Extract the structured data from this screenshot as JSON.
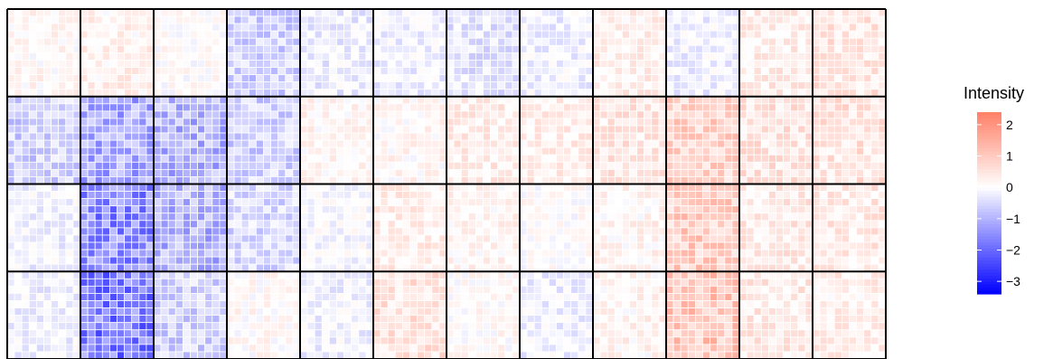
{
  "chart_data": {
    "type": "heatmap",
    "title": "",
    "xlabel": "",
    "ylabel": "",
    "panel_grid": {
      "columns": 12,
      "rows": 4
    },
    "cells_per_panel": {
      "columns": 10,
      "rows": 12
    },
    "grid": true,
    "color_scale": {
      "low_color": "#0000FF",
      "mid_color": "#FFFFFF",
      "high_color": "#FF7F66",
      "midpoint": 0,
      "limits": [
        -3.4,
        2.4
      ]
    },
    "legend": {
      "title": "Intensity",
      "position": "right",
      "ticks": [
        2,
        1,
        0,
        -1,
        -2,
        -3
      ],
      "tick_labels": [
        "2",
        "1",
        "0",
        "−1",
        "−2",
        "−3"
      ]
    },
    "panel_means": [
      [
        0.15,
        0.25,
        0.05,
        -0.6,
        -0.25,
        -0.2,
        -0.35,
        -0.2,
        0.3,
        -0.2,
        0.35,
        0.45
      ],
      [
        -0.6,
        -1.1,
        -1.0,
        -0.6,
        0.2,
        0.15,
        0.35,
        0.3,
        0.45,
        0.8,
        0.5,
        0.5
      ],
      [
        -0.2,
        -1.5,
        -1.0,
        -0.5,
        -0.1,
        0.3,
        0.2,
        0.05,
        0.2,
        0.9,
        0.4,
        0.4
      ],
      [
        -0.2,
        -1.7,
        -0.6,
        0.1,
        -0.2,
        0.5,
        0.1,
        -0.2,
        0.2,
        1.0,
        0.4,
        0.3
      ]
    ]
  }
}
